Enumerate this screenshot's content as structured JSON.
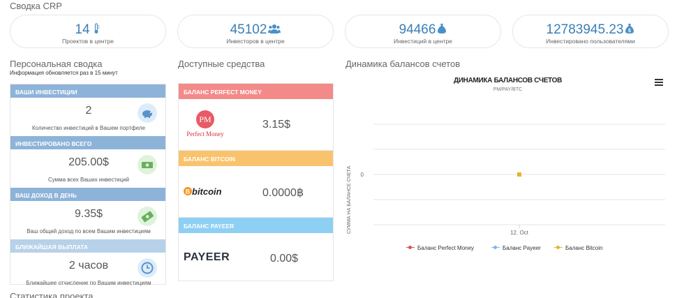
{
  "summary": {
    "title": "Сводка CRP",
    "stats": [
      {
        "value": "14",
        "label": "Проектов в центре",
        "icon": "thermometer-icon"
      },
      {
        "value": "45102",
        "label": "Инвесторов в центре",
        "icon": "users-icon"
      },
      {
        "value": "94466",
        "label": "Инвестиций в центре",
        "icon": "money-bag-icon"
      },
      {
        "value": "12783945.23",
        "label": "Инвестировано пользователями",
        "icon": "money-bag-dollar-icon"
      }
    ]
  },
  "personal": {
    "title": "Персональная сводка",
    "subtitle": "Информация обновляется раз в 15 минут",
    "blocks": [
      {
        "header": "Ваши инвестиции",
        "value": "2",
        "desc": "Количество инвестиций в Вашем портфеле",
        "icon": "piggy-bank-icon",
        "color": "#8db3d9",
        "icon_bg": "#dcecfa",
        "icon_color": "#5a93c8"
      },
      {
        "header": "Инвестировано всего",
        "value": "205.00$",
        "desc": "Сумма всех Ваших инвестиций",
        "icon": "banknote-icon",
        "color": "#8db3d9",
        "icon_bg": "#dff3dc",
        "icon_color": "#68b05c"
      },
      {
        "header": "Ваш доход в день",
        "value": "9.35$",
        "desc": "Ваш общий доход по всем Вашим инвестициям",
        "icon": "money-tilt-icon",
        "color": "#8db3d9",
        "icon_bg": "#dff3dc",
        "icon_color": "#68b05c"
      },
      {
        "header": "Ближайшая выплата",
        "value": "2 часов",
        "desc": "Ближайшее отчисление по Вашим инвестициям",
        "icon": "clock-icon",
        "color": "#b7d1e8",
        "icon_bg": "#dcecfa",
        "icon_color": "#5a93c8"
      }
    ]
  },
  "funds": {
    "title": "Доступные средства",
    "balances": [
      {
        "header": "Баланс Perfect Money",
        "value": "3.15$",
        "logo": "perfect-money-logo",
        "logo_text_pm": "PM",
        "logo_text": "Perfect Money",
        "color": "#f38a8a"
      },
      {
        "header": "Баланс Bitcoin",
        "value": "0.0000฿",
        "logo": "bitcoin-logo",
        "logo_text": "bitcoin",
        "color": "#f9c36d"
      },
      {
        "header": "Баланс Payeer",
        "value": "0.00$",
        "logo": "payeer-logo",
        "logo_text": "PAYEER",
        "color": "#8ecff4"
      }
    ]
  },
  "dynamics": {
    "title": "Динамика балансов счетов"
  },
  "chart_data": {
    "type": "line",
    "title": "ДИНАМИКА БАЛАНСОВ СЧЕТОВ",
    "subtitle": "PM/PAY/BTC",
    "ylabel": "СУММА НА БАЛАНСЕ СЧЕТА",
    "xlabel": "",
    "categories": [
      "12. Oct"
    ],
    "yticks": [
      "0"
    ],
    "series": [
      {
        "name": "Баланс Perfect Money",
        "values": [
          0
        ],
        "color": "#d9534f"
      },
      {
        "name": "Баланс Payeer",
        "values": [
          0
        ],
        "color": "#7cb5ec"
      },
      {
        "name": "Баланс Bitcoin",
        "values": [
          0
        ],
        "color": "#e4b333"
      }
    ],
    "grid": true,
    "legend": "bottom"
  },
  "footer": {
    "section_title": "Статистика проекта"
  }
}
